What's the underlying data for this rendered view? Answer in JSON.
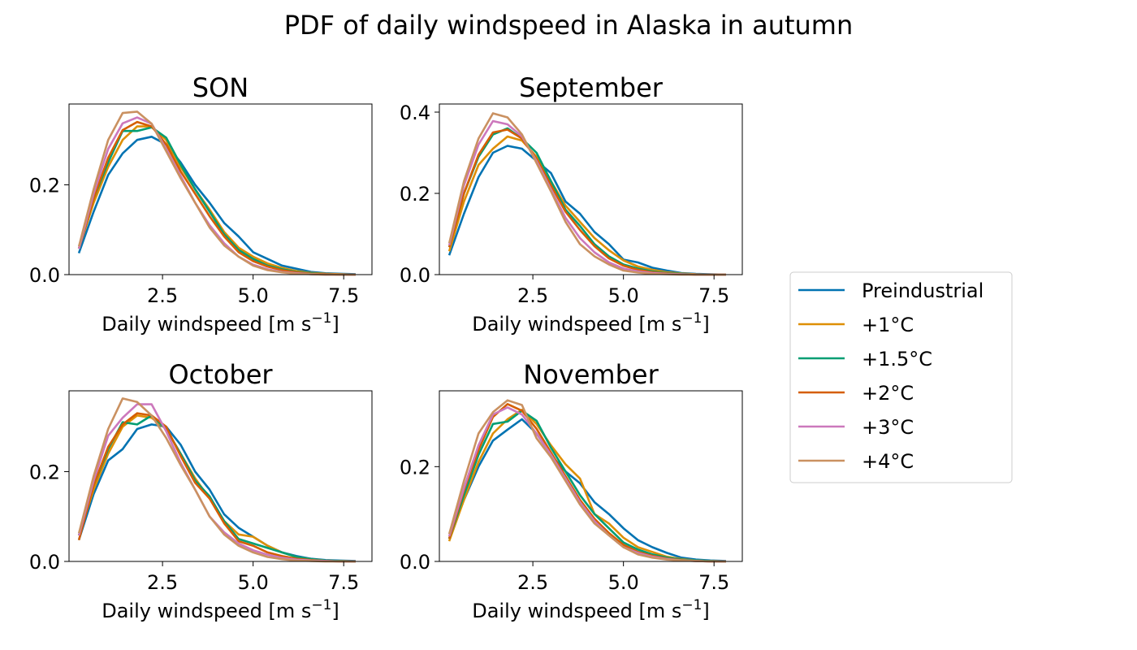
{
  "figure": {
    "title": "PDF of daily windspeed in Alaska in autumn"
  },
  "legend": {
    "placement": "right",
    "entries": [
      {
        "label": "Preindustrial",
        "color": "#0173b2"
      },
      {
        "label": "+1°C",
        "color": "#de8f05"
      },
      {
        "label": "+1.5°C",
        "color": "#029e73"
      },
      {
        "label": "+2°C",
        "color": "#d55e00"
      },
      {
        "label": "+3°C",
        "color": "#cc78bc"
      },
      {
        "label": "+4°C",
        "color": "#ca9161"
      }
    ]
  },
  "chart_data": [
    {
      "type": "line",
      "title": "SON",
      "xlabel": "Daily windspeed [m s",
      "xlabel_sup": "−1",
      "xlabel_end": "]",
      "ylabel": "",
      "xlim": [
        -0.08,
        8.28
      ],
      "ylim": [
        0.0,
        0.38
      ],
      "xticks": [
        2.5,
        5.0,
        7.5
      ],
      "xtick_labels": [
        "2.5",
        "5.0",
        "7.5"
      ],
      "yticks": [
        0.0,
        0.2
      ],
      "ytick_labels": [
        "0.0",
        "0.2"
      ],
      "grid": false,
      "x": [
        0.2,
        0.6,
        1.0,
        1.4,
        1.8,
        2.2,
        2.6,
        3.0,
        3.4,
        3.8,
        4.2,
        4.6,
        5.0,
        5.4,
        5.8,
        6.2,
        6.6,
        7.0,
        7.4,
        7.8
      ],
      "series": [
        {
          "name": "Preindustrial",
          "values": [
            0.05,
            0.14,
            0.222,
            0.27,
            0.3,
            0.307,
            0.29,
            0.25,
            0.2,
            0.16,
            0.115,
            0.085,
            0.05,
            0.035,
            0.02,
            0.013,
            0.006,
            0.003,
            0.002,
            0.001
          ]
        },
        {
          "name": "+1°C",
          "values": [
            0.06,
            0.16,
            0.24,
            0.3,
            0.33,
            0.33,
            0.3,
            0.24,
            0.19,
            0.145,
            0.095,
            0.06,
            0.04,
            0.025,
            0.015,
            0.008,
            0.004,
            0.002,
            0.001,
            0.0
          ]
        },
        {
          "name": "+1.5°C",
          "values": [
            0.06,
            0.17,
            0.25,
            0.32,
            0.32,
            0.328,
            0.305,
            0.245,
            0.19,
            0.14,
            0.09,
            0.055,
            0.035,
            0.02,
            0.012,
            0.006,
            0.003,
            0.001,
            0.0,
            0.0
          ]
        },
        {
          "name": "+2°C",
          "values": [
            0.06,
            0.17,
            0.26,
            0.322,
            0.34,
            0.33,
            0.29,
            0.23,
            0.18,
            0.13,
            0.085,
            0.05,
            0.03,
            0.018,
            0.01,
            0.005,
            0.002,
            0.001,
            0.0,
            0.0
          ]
        },
        {
          "name": "+3°C",
          "values": [
            0.06,
            0.18,
            0.28,
            0.337,
            0.35,
            0.336,
            0.28,
            0.22,
            0.16,
            0.11,
            0.07,
            0.04,
            0.022,
            0.012,
            0.006,
            0.003,
            0.001,
            0.0,
            0.0,
            0.0
          ]
        },
        {
          "name": "+4°C",
          "values": [
            0.065,
            0.19,
            0.3,
            0.36,
            0.363,
            0.336,
            0.275,
            0.215,
            0.16,
            0.105,
            0.065,
            0.04,
            0.02,
            0.01,
            0.005,
            0.002,
            0.001,
            0.0,
            0.0,
            0.0
          ]
        }
      ]
    },
    {
      "type": "line",
      "title": "September",
      "xlabel": "Daily windspeed [m s",
      "xlabel_sup": "−1",
      "xlabel_end": "]",
      "ylabel": "",
      "xlim": [
        -0.08,
        8.28
      ],
      "ylim": [
        0.0,
        0.42
      ],
      "xticks": [
        2.5,
        5.0,
        7.5
      ],
      "xtick_labels": [
        "2.5",
        "5.0",
        "7.5"
      ],
      "yticks": [
        0.0,
        0.2,
        0.4
      ],
      "ytick_labels": [
        "0.0",
        "0.2",
        "0.4"
      ],
      "grid": false,
      "x": [
        0.2,
        0.6,
        1.0,
        1.4,
        1.8,
        2.2,
        2.6,
        3.0,
        3.4,
        3.8,
        4.2,
        4.6,
        5.0,
        5.4,
        5.8,
        6.2,
        6.6,
        7.0,
        7.4,
        7.8
      ],
      "series": [
        {
          "name": "Preindustrial",
          "values": [
            0.05,
            0.15,
            0.24,
            0.3,
            0.317,
            0.31,
            0.28,
            0.25,
            0.18,
            0.15,
            0.105,
            0.075,
            0.037,
            0.03,
            0.017,
            0.01,
            0.004,
            0.002,
            0.001,
            0.0
          ]
        },
        {
          "name": "+1°C",
          "values": [
            0.06,
            0.18,
            0.27,
            0.31,
            0.34,
            0.33,
            0.29,
            0.23,
            0.17,
            0.13,
            0.09,
            0.06,
            0.035,
            0.02,
            0.012,
            0.006,
            0.003,
            0.001,
            0.0,
            0.0
          ]
        },
        {
          "name": "+1.5°C",
          "values": [
            0.07,
            0.2,
            0.29,
            0.345,
            0.36,
            0.335,
            0.3,
            0.23,
            0.16,
            0.12,
            0.075,
            0.045,
            0.025,
            0.015,
            0.008,
            0.004,
            0.002,
            0.0,
            0.0,
            0.0
          ]
        },
        {
          "name": "+2°C",
          "values": [
            0.07,
            0.2,
            0.295,
            0.35,
            0.357,
            0.335,
            0.285,
            0.22,
            0.155,
            0.11,
            0.07,
            0.04,
            0.022,
            0.012,
            0.006,
            0.003,
            0.001,
            0.0,
            0.0,
            0.0
          ]
        },
        {
          "name": "+3°C",
          "values": [
            0.075,
            0.22,
            0.32,
            0.378,
            0.37,
            0.34,
            0.28,
            0.21,
            0.14,
            0.09,
            0.055,
            0.03,
            0.015,
            0.008,
            0.004,
            0.002,
            0.001,
            0.0,
            0.0,
            0.0
          ]
        },
        {
          "name": "+4°C",
          "values": [
            0.08,
            0.23,
            0.335,
            0.397,
            0.387,
            0.345,
            0.275,
            0.205,
            0.13,
            0.075,
            0.045,
            0.025,
            0.01,
            0.005,
            0.002,
            0.001,
            0.0,
            0.0,
            0.0,
            0.0
          ]
        }
      ]
    },
    {
      "type": "line",
      "title": "October",
      "xlabel": "Daily windspeed [m s",
      "xlabel_sup": "−1",
      "xlabel_end": "]",
      "ylabel": "",
      "xlim": [
        -0.08,
        8.28
      ],
      "ylim": [
        0.0,
        0.38
      ],
      "xticks": [
        2.5,
        5.0,
        7.5
      ],
      "xtick_labels": [
        "2.5",
        "5.0",
        "7.5"
      ],
      "yticks": [
        0.0,
        0.2
      ],
      "ytick_labels": [
        "0.0",
        "0.2"
      ],
      "grid": false,
      "x": [
        0.2,
        0.6,
        1.0,
        1.4,
        1.8,
        2.2,
        2.6,
        3.0,
        3.4,
        3.8,
        4.2,
        4.6,
        5.0,
        5.4,
        5.8,
        6.2,
        6.6,
        7.0,
        7.4,
        7.8
      ],
      "series": [
        {
          "name": "Preindustrial",
          "values": [
            0.05,
            0.15,
            0.225,
            0.25,
            0.295,
            0.305,
            0.3,
            0.26,
            0.2,
            0.16,
            0.105,
            0.075,
            0.055,
            0.035,
            0.02,
            0.012,
            0.006,
            0.003,
            0.002,
            0.001
          ]
        },
        {
          "name": "+1°C",
          "values": [
            0.06,
            0.16,
            0.24,
            0.3,
            0.325,
            0.32,
            0.295,
            0.24,
            0.185,
            0.14,
            0.09,
            0.06,
            0.055,
            0.035,
            0.02,
            0.01,
            0.005,
            0.002,
            0.001,
            0.0
          ]
        },
        {
          "name": "+1.5°C",
          "values": [
            0.06,
            0.17,
            0.25,
            0.31,
            0.305,
            0.325,
            0.295,
            0.24,
            0.18,
            0.145,
            0.09,
            0.05,
            0.04,
            0.03,
            0.02,
            0.01,
            0.005,
            0.002,
            0.001,
            0.0
          ]
        },
        {
          "name": "+2°C",
          "values": [
            0.05,
            0.17,
            0.255,
            0.305,
            0.33,
            0.325,
            0.3,
            0.235,
            0.175,
            0.14,
            0.085,
            0.045,
            0.035,
            0.02,
            0.012,
            0.006,
            0.003,
            0.001,
            0.0,
            0.0
          ]
        },
        {
          "name": "+3°C",
          "values": [
            0.06,
            0.18,
            0.28,
            0.32,
            0.35,
            0.35,
            0.29,
            0.22,
            0.16,
            0.1,
            0.065,
            0.04,
            0.025,
            0.015,
            0.008,
            0.004,
            0.002,
            0.001,
            0.0,
            0.0
          ]
        },
        {
          "name": "+4°C",
          "values": [
            0.065,
            0.19,
            0.295,
            0.363,
            0.355,
            0.325,
            0.275,
            0.215,
            0.16,
            0.1,
            0.06,
            0.035,
            0.02,
            0.01,
            0.005,
            0.002,
            0.001,
            0.0,
            0.0,
            0.0
          ]
        }
      ]
    },
    {
      "type": "line",
      "title": "November",
      "xlabel": "Daily windspeed [m s",
      "xlabel_sup": "−1",
      "xlabel_end": "]",
      "ylabel": "",
      "xlim": [
        -0.08,
        8.28
      ],
      "ylim": [
        0.0,
        0.36
      ],
      "xticks": [
        2.5,
        5.0,
        7.5
      ],
      "xtick_labels": [
        "2.5",
        "5.0",
        "7.5"
      ],
      "yticks": [
        0.0,
        0.2
      ],
      "ytick_labels": [
        "0.0",
        "0.2"
      ],
      "grid": false,
      "x": [
        0.2,
        0.6,
        1.0,
        1.4,
        1.8,
        2.2,
        2.6,
        3.0,
        3.4,
        3.8,
        4.2,
        4.6,
        5.0,
        5.4,
        5.8,
        6.2,
        6.6,
        7.0,
        7.4,
        7.8
      ],
      "series": [
        {
          "name": "Preindustrial",
          "values": [
            0.05,
            0.13,
            0.2,
            0.255,
            0.278,
            0.3,
            0.27,
            0.225,
            0.19,
            0.165,
            0.125,
            0.1,
            0.07,
            0.045,
            0.03,
            0.018,
            0.008,
            0.004,
            0.002,
            0.001
          ]
        },
        {
          "name": "+1°C",
          "values": [
            0.045,
            0.13,
            0.21,
            0.27,
            0.3,
            0.32,
            0.29,
            0.245,
            0.205,
            0.175,
            0.1,
            0.08,
            0.05,
            0.03,
            0.02,
            0.01,
            0.005,
            0.002,
            0.001,
            0.0
          ]
        },
        {
          "name": "+1.5°C",
          "values": [
            0.05,
            0.14,
            0.225,
            0.29,
            0.295,
            0.318,
            0.297,
            0.24,
            0.19,
            0.14,
            0.1,
            0.07,
            0.04,
            0.025,
            0.015,
            0.008,
            0.004,
            0.002,
            0.001,
            0.0
          ]
        },
        {
          "name": "+2°C",
          "values": [
            0.05,
            0.15,
            0.235,
            0.305,
            0.332,
            0.318,
            0.28,
            0.23,
            0.18,
            0.13,
            0.09,
            0.06,
            0.035,
            0.02,
            0.012,
            0.006,
            0.003,
            0.001,
            0.0,
            0.0
          ]
        },
        {
          "name": "+3°C",
          "values": [
            0.055,
            0.155,
            0.245,
            0.31,
            0.325,
            0.31,
            0.27,
            0.225,
            0.175,
            0.125,
            0.085,
            0.055,
            0.03,
            0.018,
            0.01,
            0.005,
            0.002,
            0.001,
            0.0,
            0.0
          ]
        },
        {
          "name": "+4°C",
          "values": [
            0.06,
            0.17,
            0.27,
            0.315,
            0.34,
            0.33,
            0.26,
            0.22,
            0.17,
            0.12,
            0.08,
            0.055,
            0.03,
            0.015,
            0.008,
            0.004,
            0.002,
            0.001,
            0.0,
            0.0
          ]
        }
      ]
    }
  ]
}
